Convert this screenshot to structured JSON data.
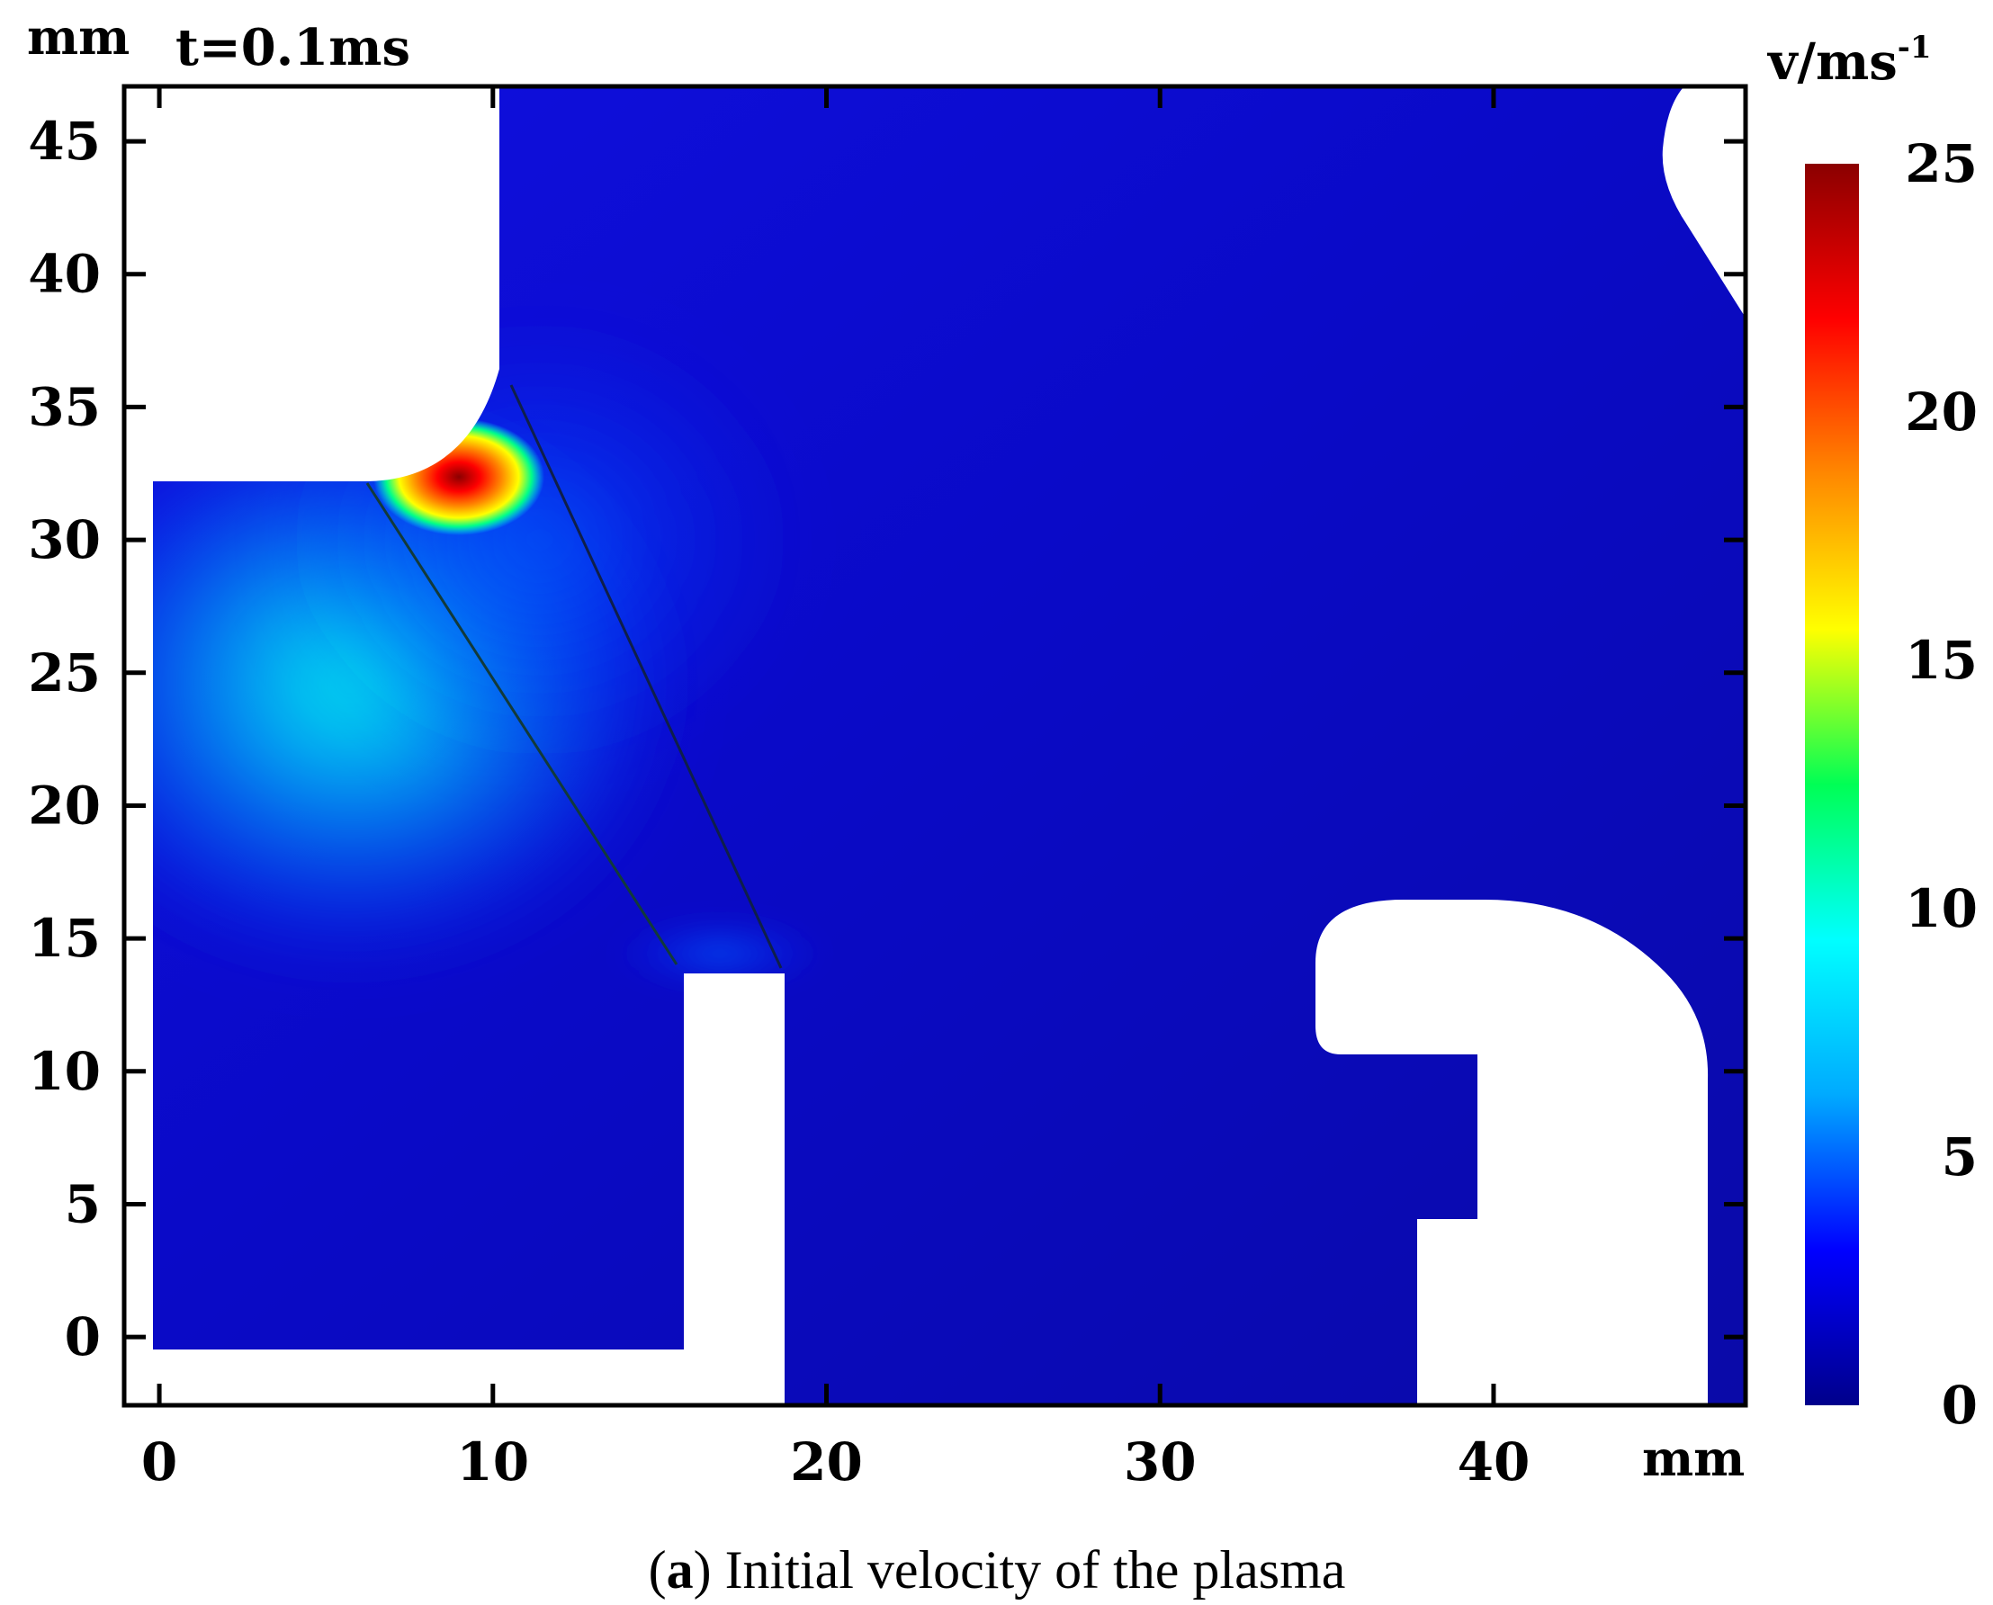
{
  "chart_data": {
    "type": "heatmap",
    "title": "t=0.1ms",
    "xlabel": "mm",
    "ylabel": "mm",
    "xlim": [
      -1,
      47.5
    ],
    "ylim": [
      -2.5,
      47
    ],
    "x_ticks": [
      0,
      10,
      20,
      30,
      40
    ],
    "y_ticks": [
      0,
      5,
      10,
      15,
      20,
      25,
      30,
      35,
      40,
      45
    ],
    "colorbar": {
      "label": "v/ms",
      "label_superscript": "-1",
      "range": [
        0,
        25
      ],
      "ticks": [
        0,
        5,
        10,
        15,
        20,
        25
      ],
      "colormap": [
        "#00008b",
        "#0000ff",
        "#00aaff",
        "#00ffff",
        "#00ff55",
        "#ffff00",
        "#ff8800",
        "#ff0000",
        "#8b0000"
      ]
    },
    "field": {
      "background_velocity": 1,
      "peak": {
        "x": 9.5,
        "y": 32,
        "velocity": 25
      },
      "secondary_region": {
        "x": 6,
        "y": 27,
        "velocity": 10
      }
    },
    "solid_regions": [
      "upper-left electrode",
      "lower-left boundary",
      "center conductor",
      "lower-right hook electrode",
      "upper-right corner"
    ]
  },
  "caption": {
    "label": "a",
    "text": " Initial velocity of the plasma"
  }
}
